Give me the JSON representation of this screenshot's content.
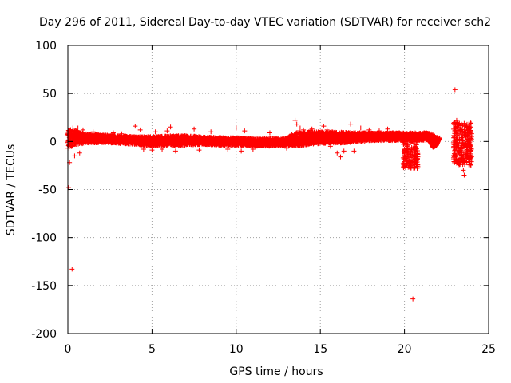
{
  "chart_data": {
    "type": "scatter",
    "title": "Day 296 of 2011, Sidereal Day-to-day VTEC variation (SDTVAR) for receiver sch2",
    "xlabel": "GPS time / hours",
    "ylabel": "SDTVAR / TECUs",
    "xlim": [
      0,
      25
    ],
    "ylim": [
      -200,
      100
    ],
    "xticks": [
      0,
      5,
      10,
      15,
      20,
      25
    ],
    "yticks": [
      -200,
      -150,
      -100,
      -50,
      0,
      50,
      100
    ],
    "xtick_labels": [
      "0",
      "5",
      "10",
      "15",
      "20",
      "25"
    ],
    "ytick_labels": [
      "-200",
      "-150",
      "-100",
      "-50",
      "0",
      "50",
      "100"
    ],
    "grid": true,
    "marker": "+",
    "color": "#ff0000",
    "band": {
      "description": "dense cloud of points",
      "x": [
        0.0,
        0.5,
        1.0,
        2.0,
        3.0,
        4.0,
        5.0,
        6.0,
        7.0,
        8.0,
        9.0,
        10.0,
        11.0,
        12.0,
        13.0,
        13.5,
        14.0,
        15.0,
        16.0,
        17.0,
        18.0,
        19.0,
        20.0,
        21.0,
        21.5,
        22.0
      ],
      "center": [
        3,
        4,
        3,
        3,
        2,
        1,
        0,
        1,
        1,
        1,
        0,
        0,
        -1,
        -1,
        0,
        2,
        3,
        4,
        4,
        4,
        5,
        5,
        5,
        5,
        5,
        1
      ],
      "half_width": [
        10,
        7,
        5,
        4,
        4,
        4,
        5,
        5,
        5,
        4,
        4,
        4,
        4,
        4,
        4,
        7,
        7,
        6,
        6,
        5,
        4,
        4,
        4,
        4,
        4,
        3
      ]
    },
    "points": [
      [
        0.05,
        -48
      ],
      [
        0.25,
        -133
      ],
      [
        0.1,
        -22
      ],
      [
        0.15,
        12
      ],
      [
        0.3,
        14
      ],
      [
        0.6,
        14
      ],
      [
        0.9,
        12
      ],
      [
        0.7,
        -12
      ],
      [
        0.4,
        -15
      ],
      [
        1.5,
        10
      ],
      [
        2.7,
        9
      ],
      [
        3.2,
        8
      ],
      [
        4.0,
        16
      ],
      [
        4.3,
        12
      ],
      [
        4.5,
        -8
      ],
      [
        5.0,
        -9
      ],
      [
        5.2,
        10
      ],
      [
        5.9,
        11
      ],
      [
        6.1,
        15
      ],
      [
        6.4,
        -10
      ],
      [
        5.6,
        -8
      ],
      [
        7.5,
        13
      ],
      [
        7.8,
        -9
      ],
      [
        8.5,
        10
      ],
      [
        9.5,
        -8
      ],
      [
        10.0,
        14
      ],
      [
        10.3,
        -10
      ],
      [
        10.5,
        11
      ],
      [
        11.0,
        -8
      ],
      [
        12.0,
        9
      ],
      [
        13.0,
        -7
      ],
      [
        13.5,
        22
      ],
      [
        13.6,
        18
      ],
      [
        13.8,
        14
      ],
      [
        14.0,
        12
      ],
      [
        14.5,
        13
      ],
      [
        15.2,
        16
      ],
      [
        15.4,
        12
      ],
      [
        15.6,
        -5
      ],
      [
        16.0,
        -12
      ],
      [
        16.2,
        -16
      ],
      [
        16.4,
        -10
      ],
      [
        16.8,
        18
      ],
      [
        17.0,
        -10
      ],
      [
        17.4,
        14
      ],
      [
        17.9,
        12
      ],
      [
        18.5,
        11
      ],
      [
        19.0,
        13
      ],
      [
        19.3,
        9
      ],
      [
        20.0,
        -8
      ],
      [
        20.1,
        -14
      ],
      [
        20.2,
        -12
      ],
      [
        20.4,
        -14
      ],
      [
        20.5,
        -19
      ],
      [
        20.6,
        -24
      ],
      [
        20.7,
        -22
      ],
      [
        20.55,
        -28
      ],
      [
        20.8,
        -16
      ],
      [
        20.5,
        -164
      ],
      [
        21.7,
        -6
      ],
      [
        21.9,
        -2
      ],
      [
        22.0,
        3
      ],
      [
        23.0,
        54
      ],
      [
        23.1,
        22
      ],
      [
        23.2,
        18
      ],
      [
        23.15,
        14
      ],
      [
        23.3,
        12
      ],
      [
        23.05,
        8
      ],
      [
        23.1,
        2
      ],
      [
        23.2,
        -6
      ],
      [
        23.3,
        -12
      ],
      [
        23.1,
        -18
      ],
      [
        23.2,
        -23
      ],
      [
        23.5,
        -22
      ],
      [
        23.5,
        -30
      ],
      [
        23.55,
        -35
      ],
      [
        23.6,
        -12
      ],
      [
        23.7,
        -6
      ],
      [
        23.8,
        0
      ],
      [
        23.75,
        12
      ],
      [
        23.85,
        18
      ],
      [
        23.9,
        14
      ],
      [
        23.9,
        6
      ],
      [
        23.95,
        -4
      ],
      [
        23.9,
        -10
      ],
      [
        23.8,
        -16
      ],
      [
        23.4,
        4
      ],
      [
        23.6,
        8
      ],
      [
        23.7,
        16
      ],
      [
        23.35,
        -2
      ],
      [
        23.45,
        10
      ],
      [
        24.0,
        2
      ],
      [
        23.65,
        -2
      ],
      [
        23.25,
        6
      ],
      [
        23.55,
        12
      ],
      [
        23.0,
        -4
      ]
    ],
    "late_cluster": {
      "x_range": [
        22.9,
        24.0
      ],
      "y_range": [
        -25,
        20
      ]
    },
    "dip_20h": {
      "x_range": [
        19.9,
        20.8
      ],
      "y_range": [
        -28,
        0
      ]
    },
    "arc_22h": {
      "x": [
        21.3,
        21.5,
        21.7,
        21.9,
        22.1
      ],
      "y": [
        5,
        0,
        -6,
        -4,
        4
      ]
    }
  }
}
